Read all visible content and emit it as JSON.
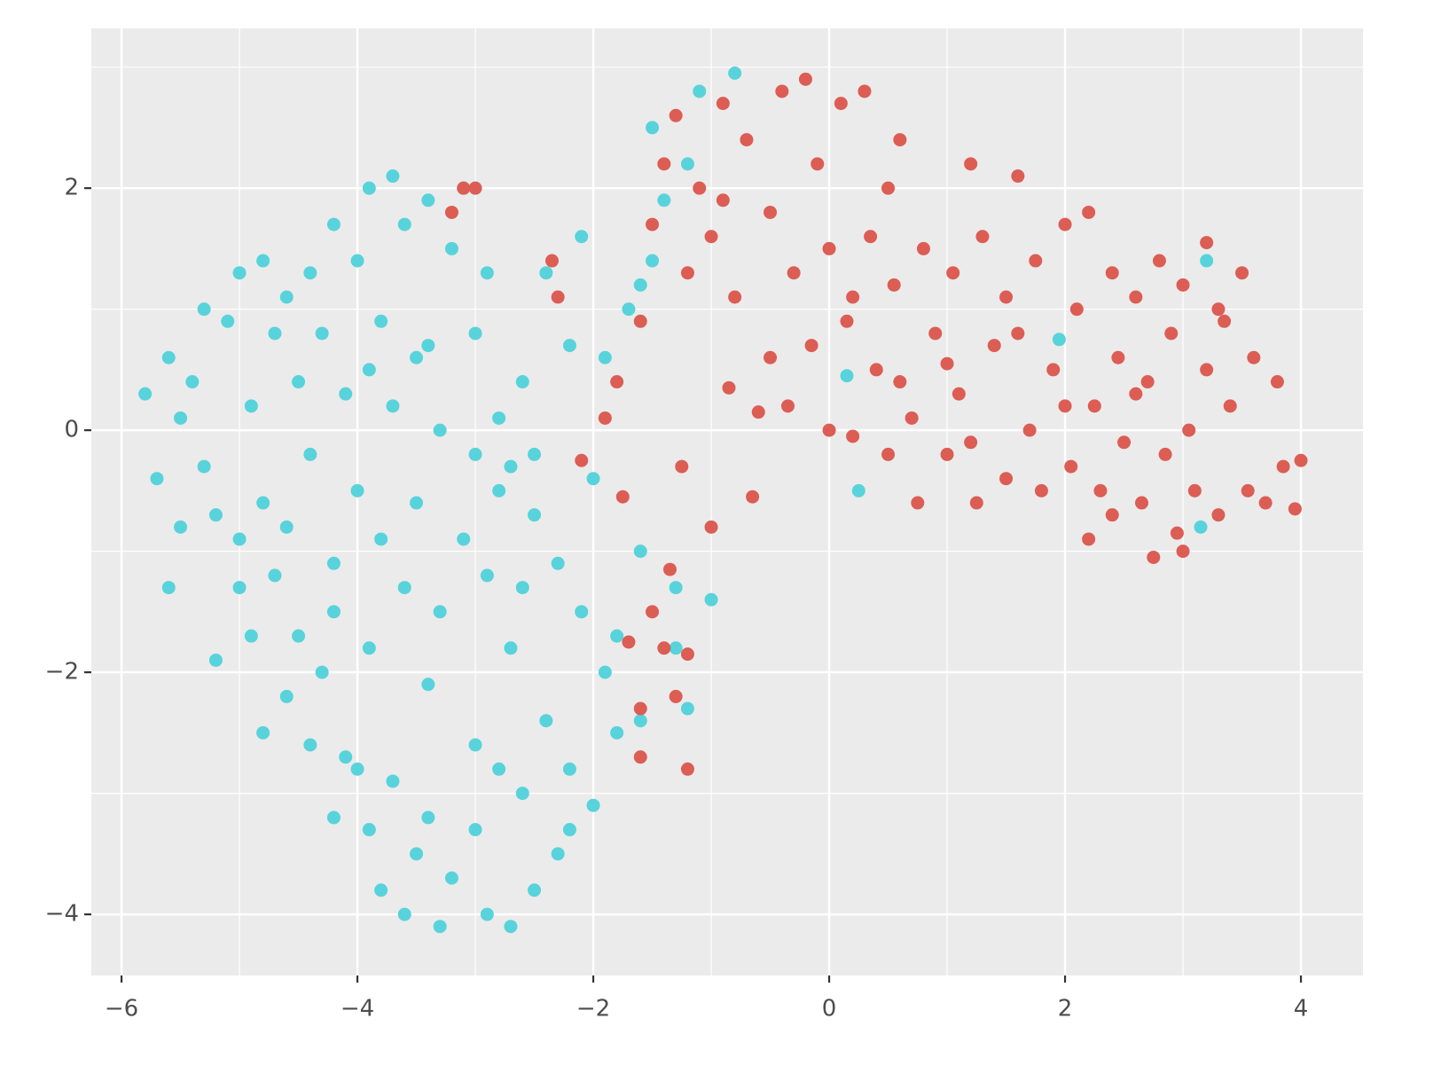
{
  "chart_data": {
    "type": "scatter",
    "xlim": [
      -6.256,
      4.526
    ],
    "ylim": [
      -4.505,
      3.32
    ],
    "xticks": [
      {
        "value": -6,
        "label": "−6"
      },
      {
        "value": -4,
        "label": "−4"
      },
      {
        "value": -2,
        "label": "−2"
      },
      0,
      2,
      4
    ],
    "yticks": [
      {
        "value": -4,
        "label": "−4"
      },
      {
        "value": -2,
        "label": "−2"
      },
      0,
      2
    ],
    "grid": true,
    "minor_grid": true,
    "background": "#ebebeb",
    "series": [
      {
        "color": "#58d3db",
        "x": [
          -5.8,
          -5.7,
          -5.6,
          -5.5,
          -5.5,
          -5.4,
          -5.3,
          -5.3,
          -5.2,
          -5.1,
          -5.0,
          -5.0,
          -4.9,
          -4.9,
          -4.8,
          -4.8,
          -4.7,
          -4.7,
          -4.6,
          -4.6,
          -4.5,
          -4.5,
          -4.4,
          -4.4,
          -4.3,
          -4.3,
          -4.2,
          -4.2,
          -4.1,
          -4.1,
          -4.0,
          -4.0,
          -3.9,
          -3.9,
          -3.9,
          -3.8,
          -3.8,
          -3.7,
          -3.7,
          -3.7,
          -3.6,
          -3.6,
          -3.6,
          -3.5,
          -3.5,
          -3.5,
          -3.4,
          -3.4,
          -3.3,
          -3.3,
          -3.2,
          -3.2,
          -3.1,
          -3.1,
          -3.0,
          -3.0,
          -2.9,
          -2.9,
          -2.9,
          -2.8,
          -2.8,
          -2.7,
          -2.7,
          -2.7,
          -2.6,
          -2.6,
          -2.5,
          -2.5,
          -2.4,
          -2.4,
          -2.3,
          -2.3,
          -2.2,
          -2.2,
          -2.1,
          -2.1,
          -2.0,
          -2.0,
          -1.9,
          -1.9,
          -1.8,
          -1.8,
          -1.7,
          -1.6,
          -1.6,
          -1.5,
          -1.5,
          -1.3,
          -1.3,
          -1.2,
          -1.2,
          -1.1,
          -1.0,
          -0.8,
          0.15,
          0.25,
          1.95,
          3.2,
          3.15,
          -1.4,
          -1.6,
          -5.6,
          -5.2,
          -4.8,
          -4.4,
          -4.2,
          -3.8,
          -3.4,
          -3.0,
          -2.6,
          -2.2,
          -3.3,
          -4.0,
          -5.0,
          -4.6,
          -4.2,
          -3.9,
          -3.4,
          -3.0,
          -2.5,
          -2.8
        ],
        "y": [
          0.3,
          -0.4,
          0.6,
          -0.8,
          0.1,
          0.4,
          -0.3,
          1.0,
          -0.7,
          0.9,
          -0.9,
          1.3,
          0.2,
          -1.7,
          1.4,
          -0.6,
          0.8,
          -1.2,
          1.1,
          -2.2,
          0.4,
          -1.7,
          1.3,
          -0.2,
          -2.0,
          0.8,
          1.7,
          -1.1,
          0.3,
          -2.7,
          1.4,
          -0.5,
          2.0,
          -1.8,
          -3.3,
          0.9,
          -0.9,
          2.1,
          -2.9,
          0.2,
          1.7,
          -1.3,
          -4.0,
          0.6,
          -0.6,
          -3.5,
          1.9,
          -2.1,
          0.0,
          -1.5,
          1.5,
          -3.7,
          2.0,
          -0.9,
          0.8,
          -2.6,
          1.3,
          -1.2,
          -4.0,
          0.1,
          -2.8,
          -0.3,
          -1.8,
          -4.1,
          0.4,
          -1.3,
          -3.8,
          -0.7,
          -2.4,
          1.3,
          -1.1,
          -3.5,
          0.7,
          -2.8,
          -1.5,
          1.6,
          -3.1,
          -0.4,
          -2.0,
          0.6,
          -1.7,
          -2.5,
          1.0,
          -1.0,
          -2.4,
          2.5,
          1.4,
          -1.8,
          -1.3,
          -2.3,
          2.2,
          2.8,
          -1.4,
          2.95,
          0.45,
          -0.5,
          0.75,
          1.4,
          -0.8,
          1.9,
          1.2,
          -1.3,
          -1.9,
          -2.5,
          -2.6,
          -3.2,
          -3.8,
          -3.2,
          -3.3,
          -3.0,
          -3.3,
          -4.1,
          -2.8,
          -1.3,
          -0.8,
          -1.5,
          0.5,
          0.7,
          -0.2,
          -0.2,
          -0.5
        ]
      },
      {
        "color": "#dc5d54",
        "x": [
          -3.2,
          -3.1,
          -3.0,
          -2.35,
          -2.3,
          -2.1,
          -1.9,
          -1.8,
          -1.75,
          -1.7,
          -1.6,
          -1.6,
          -1.5,
          -1.4,
          -1.3,
          -1.2,
          -1.2,
          -1.25,
          -1.0,
          -0.65,
          -1.6,
          -1.5,
          -1.4,
          -1.3,
          -1.2,
          -1.1,
          -1.0,
          -0.9,
          -0.85,
          -0.8,
          -0.7,
          -0.6,
          -0.5,
          -0.4,
          -0.35,
          -0.3,
          -0.2,
          -0.15,
          -0.1,
          0.0,
          0.0,
          0.1,
          0.15,
          0.2,
          0.3,
          0.35,
          0.4,
          0.5,
          0.55,
          0.6,
          0.7,
          0.75,
          0.8,
          0.9,
          1.0,
          1.05,
          1.1,
          1.2,
          1.25,
          1.3,
          1.4,
          1.5,
          1.5,
          1.6,
          1.7,
          1.75,
          1.8,
          1.9,
          2.0,
          2.05,
          2.1,
          2.2,
          2.25,
          2.3,
          2.4,
          2.45,
          2.5,
          2.6,
          2.65,
          2.7,
          2.75,
          2.8,
          2.85,
          2.9,
          2.95,
          3.0,
          3.05,
          3.1,
          3.2,
          3.2,
          3.3,
          3.35,
          3.4,
          3.5,
          3.55,
          3.6,
          3.7,
          3.8,
          3.85,
          3.95,
          4.0,
          0.6,
          1.2,
          2.2,
          3.0,
          1.0,
          0.2,
          -0.5,
          2.0,
          2.6,
          1.6,
          3.3,
          2.4,
          -1.35,
          -0.9,
          0.5
        ],
        "y": [
          1.8,
          2.0,
          2.0,
          1.4,
          1.1,
          -0.25,
          0.1,
          0.4,
          -0.55,
          -1.75,
          -2.3,
          -2.7,
          -1.5,
          -1.8,
          -2.2,
          -1.85,
          -2.8,
          -0.3,
          -0.8,
          -0.55,
          0.9,
          1.7,
          2.2,
          2.6,
          1.3,
          2.0,
          1.6,
          2.7,
          0.35,
          1.1,
          2.4,
          0.15,
          1.8,
          2.8,
          0.2,
          1.3,
          2.9,
          0.7,
          2.2,
          1.5,
          0.0,
          2.7,
          0.9,
          -0.05,
          2.8,
          1.6,
          0.5,
          -0.2,
          1.2,
          2.4,
          0.1,
          -0.6,
          1.5,
          0.8,
          -0.2,
          1.3,
          0.3,
          2.2,
          -0.6,
          1.6,
          0.7,
          -0.4,
          1.1,
          2.1,
          0.0,
          1.4,
          -0.5,
          0.5,
          1.7,
          -0.3,
          1.0,
          1.8,
          0.2,
          -0.5,
          1.3,
          0.6,
          -0.1,
          1.1,
          -0.6,
          0.4,
          -1.05,
          1.4,
          -0.2,
          0.8,
          -0.85,
          1.2,
          0.0,
          -0.5,
          0.5,
          1.55,
          -0.7,
          0.9,
          0.2,
          1.3,
          -0.5,
          0.6,
          -0.6,
          0.4,
          -0.3,
          -0.65,
          -0.25,
          0.4,
          -0.1,
          -0.9,
          -1.0,
          0.55,
          1.1,
          0.6,
          0.2,
          0.3,
          0.8,
          1.0,
          -0.7,
          -1.15,
          1.9,
          2.0
        ]
      }
    ]
  }
}
